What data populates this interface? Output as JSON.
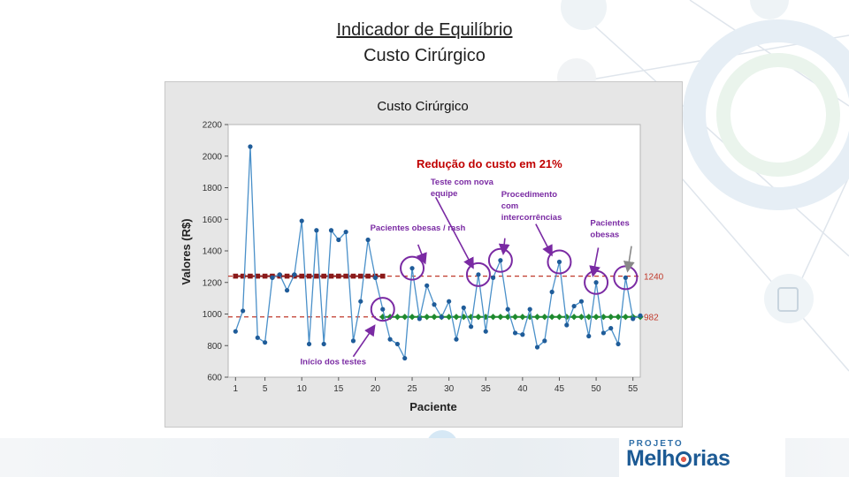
{
  "slide": {
    "title_line1": "Indicador de Equilíbrio",
    "title_line2": "Custo Cirúrgico"
  },
  "logo": {
    "small_text": "PROJETO",
    "main_text_a": "Melh",
    "main_text_b": "rias",
    "colors": {
      "primary": "#1c5a94",
      "accent": "#e25a4a"
    }
  },
  "chart_data": {
    "type": "line",
    "title": "Custo Cirúrgico",
    "xlabel": "Paciente",
    "ylabel": "Valores (R$)",
    "xlim": [
      0,
      56
    ],
    "ylim": [
      600,
      2200
    ],
    "x_ticks": [
      1,
      5,
      10,
      15,
      20,
      25,
      30,
      35,
      40,
      45,
      50,
      55
    ],
    "y_ticks": [
      600,
      800,
      1000,
      1200,
      1400,
      1600,
      1800,
      2000,
      2200
    ],
    "x": [
      1,
      2,
      3,
      4,
      5,
      6,
      7,
      8,
      9,
      10,
      11,
      12,
      13,
      14,
      15,
      16,
      17,
      18,
      19,
      20,
      21,
      22,
      23,
      24,
      25,
      26,
      27,
      28,
      29,
      30,
      31,
      32,
      33,
      34,
      35,
      36,
      37,
      38,
      39,
      40,
      41,
      42,
      43,
      44,
      45,
      46,
      47,
      48,
      49,
      50,
      51,
      52,
      53,
      54,
      55,
      56
    ],
    "values": [
      890,
      1020,
      2060,
      850,
      820,
      1230,
      1250,
      1150,
      1250,
      1590,
      810,
      1530,
      810,
      1530,
      1470,
      1520,
      830,
      1080,
      1470,
      1230,
      1030,
      840,
      810,
      720,
      1290,
      970,
      1180,
      1060,
      980,
      1080,
      840,
      1040,
      920,
      1250,
      890,
      1230,
      1340,
      1030,
      880,
      870,
      1030,
      790,
      830,
      1140,
      1330,
      930,
      1050,
      1080,
      860,
      1200,
      880,
      910,
      810,
      1230,
      970,
      990
    ],
    "series_color": "#1f5c99",
    "reference_lines": [
      {
        "value": 1240,
        "label": "1240",
        "color": "#c0392b"
      },
      {
        "value": 982,
        "label": "982",
        "color": "#c0392b"
      }
    ],
    "segments": [
      {
        "x_from": 1,
        "x_to": 21,
        "value": 1240,
        "color": "#8b1a1a",
        "marker": "square"
      },
      {
        "x_from": 21,
        "x_to": 56,
        "value": 982,
        "color": "#1e8a2e",
        "marker": "diamond"
      }
    ],
    "headline": {
      "text": "Redução do custo em 21%",
      "color": "#c00000"
    },
    "annotation_color": "#7a2aa3",
    "annotations": [
      {
        "id": "inicio",
        "text": [
          "Início dos testes"
        ],
        "tx": 9.8,
        "ty": 680,
        "ax": 17,
        "ay": 730,
        "bx": 19.8,
        "by": 920,
        "circle_x": 21,
        "circle_y": 1030
      },
      {
        "id": "obesas",
        "text": [
          "Pacientes obesas / rash"
        ],
        "tx": 19.3,
        "ty": 1530,
        "ax": 25.8,
        "ay": 1440,
        "bx": 26.7,
        "by": 1330,
        "circle_x": 25,
        "circle_y": 1290
      },
      {
        "id": "equipe",
        "text": [
          "Teste com nova",
          "equipe"
        ],
        "tx": 27.5,
        "ty": 1820,
        "ax": 28.2,
        "ay": 1740,
        "bx": 33.2,
        "by": 1300,
        "circle_x": 34,
        "circle_y": 1250
      },
      {
        "id": "procedimento",
        "text": [
          "Procedimento",
          "com",
          "intercorrências"
        ],
        "tx": 37.1,
        "ty": 1740,
        "ax": 37.6,
        "ay": 1480,
        "bx": 37.4,
        "by": 1390,
        "circle_x": 37,
        "circle_y": 1340
      },
      {
        "id": "intercorrencias",
        "text": [],
        "tx": 0,
        "ty": 0,
        "ax": 41.8,
        "ay": 1570,
        "bx": 43.9,
        "by": 1380,
        "circle_x": 45,
        "circle_y": 1330
      },
      {
        "id": "obesos",
        "text": [
          "Pacientes",
          "obesas"
        ],
        "tx": 49.2,
        "ty": 1560,
        "ax": 50.3,
        "ay": 1420,
        "bx": 49.6,
        "by": 1250,
        "circle_x": 50,
        "circle_y": 1200
      }
    ],
    "grey_arrow": {
      "ax": 54.8,
      "ay": 1430,
      "bx": 54.3,
      "by": 1280
    },
    "last_circle": {
      "x": 54,
      "y": 1230
    }
  }
}
